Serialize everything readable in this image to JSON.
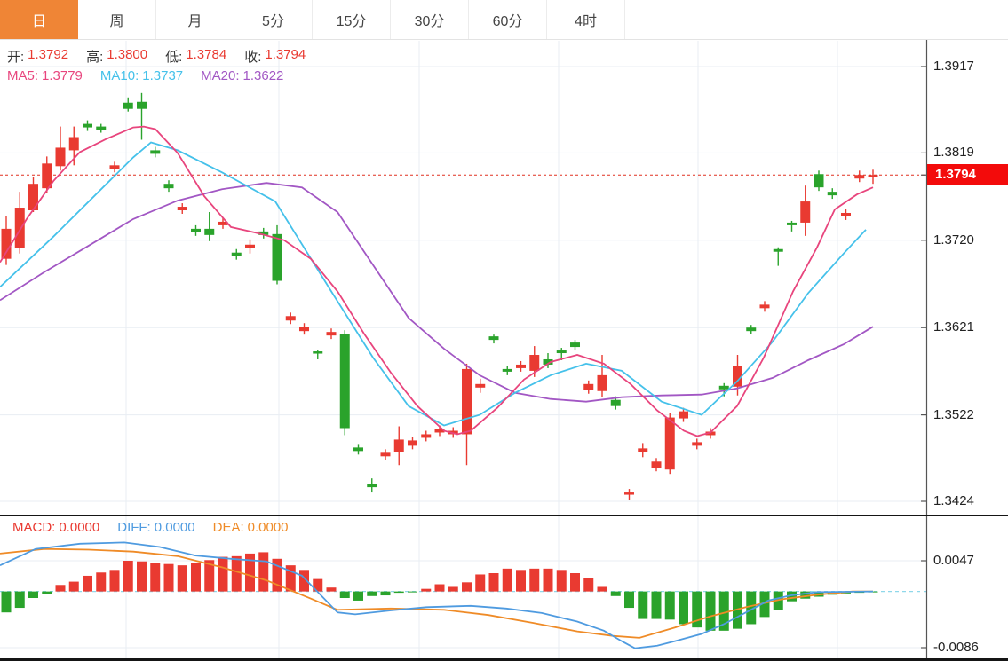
{
  "tabs": {
    "items": [
      {
        "label": "日",
        "active": true
      },
      {
        "label": "周",
        "active": false
      },
      {
        "label": "月",
        "active": false
      },
      {
        "label": "5分",
        "active": false
      },
      {
        "label": "15分",
        "active": false
      },
      {
        "label": "30分",
        "active": false
      },
      {
        "label": "60分",
        "active": false
      },
      {
        "label": "4时",
        "active": false
      }
    ]
  },
  "colors": {
    "up": "#e93a31",
    "down": "#2aa32b",
    "ma5": "#e8457d",
    "ma10": "#45c1ea",
    "ma20": "#a257c4",
    "diff": "#4f9be0",
    "dea": "#ef8b27",
    "tab_active_bg": "#ef8536",
    "price_tag_bg": "#f30b0b",
    "grid": "#e8edf3",
    "dotted_line": "#e03020",
    "zero_line": "#8fd8ea",
    "axis_text": "#222222"
  },
  "legend_ohlc": {
    "items": [
      {
        "label": "开:",
        "value": "1.3792"
      },
      {
        "label": "高:",
        "value": "1.3800"
      },
      {
        "label": "低:",
        "value": "1.3784"
      },
      {
        "label": "收:",
        "value": "1.3794"
      }
    ]
  },
  "legend_ma": {
    "items": [
      {
        "label": "MA5:",
        "value": "1.3779",
        "color_key": "ma5"
      },
      {
        "label": "MA10:",
        "value": "1.3737",
        "color_key": "ma10"
      },
      {
        "label": "MA20:",
        "value": "1.3622",
        "color_key": "ma20"
      }
    ]
  },
  "legend_macd": {
    "items": [
      {
        "label": "MACD:",
        "value": "0.0000",
        "color_key": "up"
      },
      {
        "label": "DIFF:",
        "value": "0.0000",
        "color_key": "diff"
      },
      {
        "label": "DEA:",
        "value": "0.0000",
        "color_key": "dea"
      }
    ]
  },
  "price_tag": "1.3794",
  "chart_data": [
    {
      "type": "candlestick",
      "title": "",
      "ylabel": "",
      "y_axis_ticks": [
        1.3917,
        1.3819,
        1.372,
        1.3621,
        1.3522,
        1.3424
      ],
      "ylim": [
        1.3424,
        1.3917
      ],
      "last_price": 1.3794,
      "grid": true,
      "legend_position": "top-left",
      "candles_ohlc": [
        [
          1.3699,
          1.3747,
          1.3692,
          1.3733
        ],
        [
          1.3711,
          1.3775,
          1.3705,
          1.3757
        ],
        [
          1.3754,
          1.3792,
          1.3752,
          1.3784
        ],
        [
          1.3779,
          1.3815,
          1.3774,
          1.3807
        ],
        [
          1.3804,
          1.3849,
          1.3799,
          1.3825
        ],
        [
          1.3822,
          1.3849,
          1.3805,
          1.3837
        ],
        [
          1.3852,
          1.3856,
          1.3844,
          1.3848
        ],
        [
          1.3849,
          1.3852,
          1.3842,
          1.3845
        ],
        [
          1.3801,
          1.3809,
          1.3797,
          1.3805
        ],
        [
          1.3876,
          1.3882,
          1.3866,
          1.3869
        ],
        [
          1.3877,
          1.3887,
          1.3834,
          1.3869
        ],
        [
          1.3822,
          1.3826,
          1.3814,
          1.3818
        ],
        [
          1.3784,
          1.3788,
          1.3775,
          1.3779
        ],
        [
          1.3754,
          1.3762,
          1.375,
          1.3758
        ],
        [
          1.3733,
          1.3737,
          1.3725,
          1.3729
        ],
        [
          1.3733,
          1.3752,
          1.3719,
          1.3726
        ],
        [
          1.3737,
          1.3745,
          1.3733,
          1.3741
        ],
        [
          1.3706,
          1.371,
          1.3698,
          1.3702
        ],
        [
          1.3711,
          1.3721,
          1.3705,
          1.3715
        ],
        [
          1.373,
          1.3734,
          1.3722,
          1.3726
        ],
        [
          1.3727,
          1.3737,
          1.367,
          1.3674
        ],
        [
          1.3629,
          1.3638,
          1.3625,
          1.3634
        ],
        [
          1.3617,
          1.3626,
          1.3613,
          1.3622
        ],
        [
          1.3594,
          1.3596,
          1.3585,
          1.3592
        ],
        [
          1.3612,
          1.362,
          1.3608,
          1.3616
        ],
        [
          1.3614,
          1.3618,
          1.3499,
          1.3507
        ],
        [
          1.3485,
          1.3489,
          1.3477,
          1.3481
        ],
        [
          1.3444,
          1.345,
          1.3434,
          1.344
        ],
        [
          1.3475,
          1.3483,
          1.3471,
          1.3479
        ],
        [
          1.348,
          1.3509,
          1.3465,
          1.3494
        ],
        [
          1.3487,
          1.3497,
          1.3483,
          1.3493
        ],
        [
          1.3496,
          1.3504,
          1.3492,
          1.35
        ],
        [
          1.3502,
          1.351,
          1.3498,
          1.3506
        ],
        [
          1.35,
          1.3508,
          1.3496,
          1.3504
        ],
        [
          1.35,
          1.358,
          1.3465,
          1.3574
        ],
        [
          1.3553,
          1.3563,
          1.3547,
          1.3557
        ],
        [
          1.3611,
          1.3613,
          1.3603,
          1.3607
        ],
        [
          1.3574,
          1.3577,
          1.3567,
          1.3571
        ],
        [
          1.3575,
          1.3583,
          1.3571,
          1.3579
        ],
        [
          1.3572,
          1.36,
          1.3565,
          1.359
        ],
        [
          1.3585,
          1.3592,
          1.3575,
          1.3579
        ],
        [
          1.3595,
          1.3598,
          1.3584,
          1.3592
        ],
        [
          1.3604,
          1.3607,
          1.3595,
          1.3599
        ],
        [
          1.355,
          1.3561,
          1.3546,
          1.3557
        ],
        [
          1.3549,
          1.359,
          1.3542,
          1.3567
        ],
        [
          1.3539,
          1.3543,
          1.3528,
          1.3532
        ],
        [
          1.3432,
          1.3438,
          1.3425,
          1.3434
        ],
        [
          1.348,
          1.349,
          1.3474,
          1.3484
        ],
        [
          1.3462,
          1.3473,
          1.3458,
          1.3469
        ],
        [
          1.346,
          1.3524,
          1.3455,
          1.3519
        ],
        [
          1.3518,
          1.353,
          1.3514,
          1.3526
        ],
        [
          1.3487,
          1.3495,
          1.3483,
          1.3491
        ],
        [
          1.3499,
          1.3507,
          1.3495,
          1.3503
        ],
        [
          1.3555,
          1.3558,
          1.3543,
          1.3551
        ],
        [
          1.3554,
          1.359,
          1.3544,
          1.3577
        ],
        [
          1.3621,
          1.3624,
          1.3614,
          1.3617
        ],
        [
          1.3643,
          1.3651,
          1.3639,
          1.3647
        ],
        [
          1.371,
          1.3712,
          1.3691,
          1.3707
        ],
        [
          1.374,
          1.3742,
          1.373,
          1.3737
        ],
        [
          1.374,
          1.3782,
          1.3725,
          1.3764
        ],
        [
          1.3795,
          1.3799,
          1.3776,
          1.378
        ],
        [
          1.3775,
          1.3779,
          1.3767,
          1.3771
        ],
        [
          1.3747,
          1.3755,
          1.3743,
          1.3751
        ],
        [
          1.379,
          1.3799,
          1.3786,
          1.3794
        ],
        [
          1.3792,
          1.38,
          1.3784,
          1.3794
        ]
      ],
      "ma5_points": [
        [
          0,
          1.3695
        ],
        [
          30,
          1.3744
        ],
        [
          60,
          1.3787
        ],
        [
          90,
          1.382
        ],
        [
          120,
          1.3835
        ],
        [
          150,
          1.3848
        ],
        [
          162,
          1.3849
        ],
        [
          175,
          1.3846
        ],
        [
          200,
          1.3819
        ],
        [
          230,
          1.377
        ],
        [
          260,
          1.3735
        ],
        [
          290,
          1.3728
        ],
        [
          320,
          1.372
        ],
        [
          350,
          1.3699
        ],
        [
          380,
          1.3662
        ],
        [
          410,
          1.3614
        ],
        [
          440,
          1.357
        ],
        [
          470,
          1.3532
        ],
        [
          500,
          1.3504
        ],
        [
          515,
          1.35
        ],
        [
          530,
          1.3504
        ],
        [
          560,
          1.353
        ],
        [
          590,
          1.3562
        ],
        [
          620,
          1.3582
        ],
        [
          650,
          1.359
        ],
        [
          680,
          1.358
        ],
        [
          710,
          1.3557
        ],
        [
          740,
          1.3527
        ],
        [
          770,
          1.3504
        ],
        [
          785,
          1.3498
        ],
        [
          800,
          1.3502
        ],
        [
          830,
          1.3532
        ],
        [
          860,
          1.3587
        ],
        [
          893,
          1.3662
        ],
        [
          920,
          1.3712
        ],
        [
          940,
          1.3755
        ],
        [
          965,
          1.3772
        ],
        [
          983,
          1.378
        ]
      ],
      "ma10_points": [
        [
          0,
          1.3667
        ],
        [
          60,
          1.3724
        ],
        [
          120,
          1.3784
        ],
        [
          150,
          1.3814
        ],
        [
          170,
          1.3831
        ],
        [
          200,
          1.3822
        ],
        [
          250,
          1.3797
        ],
        [
          310,
          1.3764
        ],
        [
          373,
          1.3662
        ],
        [
          420,
          1.3587
        ],
        [
          460,
          1.3532
        ],
        [
          500,
          1.351
        ],
        [
          540,
          1.3522
        ],
        [
          580,
          1.3547
        ],
        [
          620,
          1.3567
        ],
        [
          660,
          1.358
        ],
        [
          700,
          1.3572
        ],
        [
          745,
          1.3537
        ],
        [
          790,
          1.3522
        ],
        [
          830,
          1.356
        ],
        [
          870,
          1.3605
        ],
        [
          910,
          1.366
        ],
        [
          950,
          1.3705
        ],
        [
          975,
          1.3732
        ]
      ],
      "ma20_points": [
        [
          0,
          1.3652
        ],
        [
          50,
          1.3684
        ],
        [
          100,
          1.3714
        ],
        [
          150,
          1.3744
        ],
        [
          200,
          1.3765
        ],
        [
          250,
          1.3778
        ],
        [
          300,
          1.3785
        ],
        [
          340,
          1.378
        ],
        [
          380,
          1.3752
        ],
        [
          420,
          1.3692
        ],
        [
          460,
          1.3632
        ],
        [
          500,
          1.3597
        ],
        [
          540,
          1.3567
        ],
        [
          580,
          1.3547
        ],
        [
          620,
          1.354
        ],
        [
          660,
          1.3537
        ],
        [
          700,
          1.3542
        ],
        [
          745,
          1.3544
        ],
        [
          790,
          1.3545
        ],
        [
          830,
          1.3552
        ],
        [
          870,
          1.3564
        ],
        [
          910,
          1.3584
        ],
        [
          950,
          1.3602
        ],
        [
          983,
          1.3622
        ]
      ]
    },
    {
      "type": "bar",
      "title": "MACD",
      "y_axis_ticks": [
        0.0047,
        -0.0086
      ],
      "ylim": [
        -0.0086,
        0.0047
      ],
      "grid": true,
      "histogram": [
        -0.0032,
        -0.0025,
        -0.001,
        -0.0004,
        0.001,
        0.0015,
        0.0024,
        0.0029,
        0.0033,
        0.0047,
        0.0046,
        0.0043,
        0.0042,
        0.004,
        0.0044,
        0.0048,
        0.0053,
        0.0054,
        0.0058,
        0.006,
        0.005,
        0.004,
        0.0033,
        0.0019,
        0.0006,
        -0.001,
        -0.0014,
        -0.0007,
        -0.0006,
        -0.0002,
        -0.0001,
        0.0004,
        0.0011,
        0.0007,
        0.0014,
        0.0026,
        0.0028,
        0.0035,
        0.0033,
        0.0035,
        0.0035,
        0.0033,
        0.0028,
        0.0021,
        0.0007,
        -0.0007,
        -0.0025,
        -0.0042,
        -0.0042,
        -0.0043,
        -0.005,
        -0.0055,
        -0.006,
        -0.006,
        -0.0057,
        -0.005,
        -0.0039,
        -0.0028,
        -0.0015,
        -0.0011,
        -0.0008,
        -0.0005,
        -0.0003,
        -0.0002,
        -0.0001
      ],
      "diff_points": [
        [
          0,
          0.004
        ],
        [
          40,
          0.0065
        ],
        [
          90,
          0.0073
        ],
        [
          140,
          0.0075
        ],
        [
          180,
          0.0068
        ],
        [
          220,
          0.0055
        ],
        [
          260,
          0.005
        ],
        [
          300,
          0.0046
        ],
        [
          340,
          0.0024
        ],
        [
          380,
          -0.0032
        ],
        [
          400,
          -0.0035
        ],
        [
          440,
          -0.0029
        ],
        [
          480,
          -0.0024
        ],
        [
          530,
          -0.0022
        ],
        [
          570,
          -0.0026
        ],
        [
          610,
          -0.0033
        ],
        [
          650,
          -0.0046
        ],
        [
          680,
          -0.006
        ],
        [
          700,
          -0.0076
        ],
        [
          715,
          -0.0087
        ],
        [
          740,
          -0.0083
        ],
        [
          760,
          -0.0076
        ],
        [
          790,
          -0.0065
        ],
        [
          815,
          -0.005
        ],
        [
          840,
          -0.0032
        ],
        [
          865,
          -0.0014
        ],
        [
          890,
          -0.0006
        ],
        [
          920,
          -0.0001
        ],
        [
          983,
          0.0
        ]
      ],
      "dea_points": [
        [
          0,
          0.0058
        ],
        [
          50,
          0.0065
        ],
        [
          100,
          0.0064
        ],
        [
          150,
          0.0061
        ],
        [
          200,
          0.0054
        ],
        [
          250,
          0.0037
        ],
        [
          300,
          0.0017
        ],
        [
          350,
          -0.0011
        ],
        [
          380,
          -0.0028
        ],
        [
          440,
          -0.0026
        ],
        [
          500,
          -0.0028
        ],
        [
          550,
          -0.0036
        ],
        [
          600,
          -0.0048
        ],
        [
          650,
          -0.0061
        ],
        [
          690,
          -0.0068
        ],
        [
          720,
          -0.0071
        ],
        [
          760,
          -0.0055
        ],
        [
          800,
          -0.0038
        ],
        [
          840,
          -0.0024
        ],
        [
          880,
          -0.0012
        ],
        [
          920,
          -0.0005
        ],
        [
          960,
          0.0
        ],
        [
          983,
          0.0
        ]
      ]
    }
  ]
}
